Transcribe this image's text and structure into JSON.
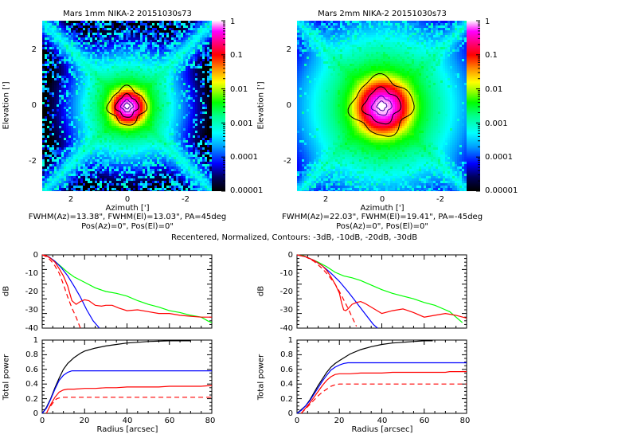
{
  "footer_note": "Recentered, Normalized, Contours: -3dB, -10dB, -20dB, -30dB",
  "chart_data": [
    {
      "type": "heatmap",
      "title": "Mars 1mm NIKA-2 20151030s73",
      "xlabel": "Azimuth [']",
      "ylabel": "Elevation [']",
      "xticks": [
        "2",
        "0",
        "-2"
      ],
      "yticks": [
        "2",
        "0",
        "-2"
      ],
      "xlim": [
        3,
        -3
      ],
      "ylim": [
        -3,
        3
      ],
      "colorbar": {
        "scale": "log",
        "range": [
          1e-05,
          1
        ],
        "ticks": [
          "1",
          "0.1",
          "0.01",
          "0.001",
          "0.0001",
          "0.00001"
        ]
      },
      "contours_db": [
        -3,
        -10,
        -20,
        -30
      ],
      "fwhm_line": "FWHM(Az)=13.38\", FWHM(El)=13.03\", PA=45deg",
      "pos_line": "Pos(Az)=0\", Pos(El)=0\"",
      "fwhm_az_arcsec": 13.38,
      "fwhm_el_arcsec": 13.03,
      "pa_deg": 45
    },
    {
      "type": "heatmap",
      "title": "Mars 2mm NIKA-2 20151030s73",
      "xlabel": "Azimuth [']",
      "ylabel": "Elevation [']",
      "xticks": [
        "2",
        "0",
        "-2"
      ],
      "yticks": [
        "2",
        "0",
        "-2"
      ],
      "xlim": [
        3,
        -3
      ],
      "ylim": [
        -3,
        3
      ],
      "colorbar": {
        "scale": "log",
        "range": [
          1e-05,
          1
        ],
        "ticks": [
          "1",
          "0.1",
          "0.01",
          "0.001",
          "0.0001",
          "0.00001"
        ]
      },
      "contours_db": [
        -3,
        -10,
        -20,
        -30
      ],
      "fwhm_line": "FWHM(Az)=22.03\", FWHM(El)=19.41\", PA=-45deg",
      "pos_line": "Pos(Az)=0\", Pos(El)=0\"",
      "fwhm_az_arcsec": 22.03,
      "fwhm_el_arcsec": 19.41,
      "pa_deg": -45
    },
    {
      "type": "line",
      "band": "1mm",
      "ylabel": "dB",
      "xlim": [
        0,
        80
      ],
      "ylim": [
        -40,
        0
      ],
      "yticks": [
        "0",
        "-10",
        "-20",
        "-30",
        "-40"
      ],
      "series": [
        {
          "name": "profile-green",
          "color": "#00ff00",
          "dash": false,
          "x": [
            0,
            3,
            6,
            9,
            12,
            15,
            20,
            25,
            30,
            35,
            40,
            45,
            50,
            55,
            60,
            65,
            70,
            75,
            78,
            80
          ],
          "y": [
            0,
            -1,
            -3.5,
            -6.5,
            -9.5,
            -12,
            -15,
            -18,
            -20,
            -21,
            -22.5,
            -25,
            -27,
            -28.5,
            -30.5,
            -31.5,
            -33,
            -34,
            -36,
            -37
          ]
        },
        {
          "name": "profile-blue",
          "color": "#0000ff",
          "dash": false,
          "x": [
            0,
            3,
            6,
            9,
            12,
            15,
            18,
            21,
            24,
            27
          ],
          "y": [
            0,
            -1,
            -3.5,
            -7,
            -11.5,
            -17,
            -23,
            -30,
            -36,
            -41
          ]
        },
        {
          "name": "profile-red",
          "color": "#ff0000",
          "dash": false,
          "x": [
            0,
            2,
            4,
            6,
            8,
            10,
            12,
            13,
            14,
            15,
            16,
            18,
            20,
            22,
            25,
            28,
            30,
            33,
            36,
            40,
            45,
            50,
            55,
            60,
            65,
            70,
            75,
            80
          ],
          "y": [
            0,
            -0.5,
            -2,
            -4,
            -7.5,
            -11.5,
            -17,
            -21,
            -25,
            -26,
            -27,
            -25.5,
            -24.5,
            -25,
            -27.5,
            -28,
            -27.5,
            -27.5,
            -29,
            -30.5,
            -30,
            -31,
            -32,
            -32,
            -33,
            -33.5,
            -34,
            -34
          ]
        },
        {
          "name": "profile-red-dashed",
          "color": "#ff0000",
          "dash": true,
          "x": [
            0,
            2,
            4,
            6,
            8,
            10,
            12,
            14,
            16,
            18
          ],
          "y": [
            0,
            -1,
            -3,
            -6,
            -10,
            -16,
            -23,
            -29,
            -34,
            -40
          ]
        }
      ]
    },
    {
      "type": "line",
      "band": "2mm",
      "ylabel": "dB",
      "xlim": [
        0,
        80
      ],
      "ylim": [
        -40,
        0
      ],
      "yticks": [
        "0",
        "-10",
        "-20",
        "-30",
        "-40"
      ],
      "series": [
        {
          "name": "profile-green",
          "color": "#00ff00",
          "dash": false,
          "x": [
            0,
            3,
            6,
            10,
            14,
            18,
            22,
            26,
            30,
            35,
            40,
            45,
            50,
            55,
            60,
            65,
            70,
            72,
            75,
            78
          ],
          "y": [
            0,
            -0.5,
            -2,
            -4,
            -6.5,
            -9.5,
            -11.5,
            -12.5,
            -14,
            -16.5,
            -19,
            -21,
            -22.5,
            -24,
            -26,
            -27.5,
            -30,
            -31,
            -34,
            -37
          ]
        },
        {
          "name": "profile-blue",
          "color": "#0000ff",
          "dash": false,
          "x": [
            0,
            4,
            8,
            12,
            16,
            20,
            24,
            28,
            32,
            36,
            38
          ],
          "y": [
            0,
            -1,
            -3,
            -6,
            -10,
            -14.5,
            -20,
            -26,
            -32,
            -38,
            -41
          ]
        },
        {
          "name": "profile-red",
          "color": "#ff0000",
          "dash": false,
          "x": [
            0,
            4,
            8,
            12,
            14,
            16,
            18,
            20,
            21,
            22,
            23,
            24,
            26,
            28,
            30,
            32,
            35,
            40,
            45,
            50,
            55,
            60,
            65,
            70,
            75,
            80
          ],
          "y": [
            0,
            -1,
            -3,
            -6,
            -8.5,
            -12,
            -16,
            -21,
            -26,
            -30,
            -30.5,
            -29.5,
            -27,
            -26,
            -25.5,
            -26.5,
            -28.5,
            -32,
            -30.5,
            -29.5,
            -31.5,
            -34,
            -33,
            -32,
            -33,
            -34.5
          ]
        },
        {
          "name": "profile-red-dashed",
          "color": "#ff0000",
          "dash": true,
          "x": [
            0,
            4,
            8,
            12,
            15,
            18,
            20,
            22,
            24,
            26,
            28
          ],
          "y": [
            0,
            -1,
            -3.5,
            -7.5,
            -11.5,
            -16,
            -20,
            -24.5,
            -29,
            -34,
            -39
          ]
        }
      ]
    },
    {
      "type": "line",
      "band": "1mm",
      "ylabel": "Total power",
      "xlabel": "Radius [arcsec]",
      "xlim": [
        0,
        80
      ],
      "ylim": [
        0,
        1
      ],
      "xticks": [
        "0",
        "20",
        "40",
        "60",
        "80"
      ],
      "yticks": [
        "0",
        "0.2",
        "0.4",
        "0.6",
        "0.8",
        "1"
      ],
      "series": [
        {
          "name": "power-black",
          "color": "#000000",
          "dash": false,
          "x": [
            0,
            2,
            4,
            6,
            8,
            10,
            12,
            15,
            18,
            20,
            25,
            30,
            35,
            40,
            45,
            50,
            60,
            70
          ],
          "y": [
            0,
            0.08,
            0.2,
            0.35,
            0.48,
            0.6,
            0.68,
            0.76,
            0.82,
            0.85,
            0.89,
            0.92,
            0.94,
            0.96,
            0.97,
            0.98,
            0.99,
            0.99
          ]
        },
        {
          "name": "power-blue",
          "color": "#0000ff",
          "dash": false,
          "x": [
            0,
            2,
            4,
            6,
            8,
            10,
            12,
            14,
            15,
            80
          ],
          "y": [
            0,
            0.07,
            0.19,
            0.33,
            0.45,
            0.52,
            0.56,
            0.58,
            0.58,
            0.58
          ]
        },
        {
          "name": "power-red",
          "color": "#ff0000",
          "dash": false,
          "x": [
            2,
            4,
            6,
            8,
            10,
            12,
            15,
            20,
            25,
            30,
            35,
            40,
            45,
            50,
            55,
            60,
            65,
            70,
            75,
            80
          ],
          "y": [
            0,
            0.12,
            0.22,
            0.29,
            0.32,
            0.33,
            0.33,
            0.34,
            0.34,
            0.35,
            0.35,
            0.36,
            0.36,
            0.36,
            0.36,
            0.37,
            0.37,
            0.37,
            0.37,
            0.38
          ]
        },
        {
          "name": "power-red-dashed",
          "color": "#ff0000",
          "dash": true,
          "x": [
            4,
            5,
            6,
            7,
            8,
            10,
            12,
            80
          ],
          "y": [
            0.1,
            0.14,
            0.18,
            0.2,
            0.21,
            0.22,
            0.22,
            0.22
          ]
        }
      ]
    },
    {
      "type": "line",
      "band": "2mm",
      "ylabel": "Total power",
      "xlabel": "Radius [arcsec]",
      "xlim": [
        0,
        80
      ],
      "ylim": [
        0,
        1
      ],
      "xticks": [
        "0",
        "20",
        "40",
        "60",
        "80"
      ],
      "yticks": [
        "0",
        "0.2",
        "0.4",
        "0.6",
        "0.8",
        "1"
      ],
      "series": [
        {
          "name": "power-black",
          "color": "#000000",
          "dash": false,
          "x": [
            0,
            2,
            4,
            6,
            8,
            10,
            12,
            14,
            16,
            18,
            20,
            25,
            30,
            35,
            40,
            45,
            50,
            55,
            60,
            64
          ],
          "y": [
            0,
            0.05,
            0.1,
            0.18,
            0.28,
            0.38,
            0.47,
            0.56,
            0.63,
            0.68,
            0.72,
            0.81,
            0.87,
            0.91,
            0.94,
            0.96,
            0.97,
            0.98,
            0.99,
            0.99
          ]
        },
        {
          "name": "power-blue",
          "color": "#0000ff",
          "dash": false,
          "x": [
            0,
            2,
            4,
            6,
            8,
            10,
            12,
            14,
            16,
            18,
            20,
            22,
            24,
            26,
            80
          ],
          "y": [
            0,
            0.04,
            0.1,
            0.17,
            0.26,
            0.35,
            0.44,
            0.52,
            0.59,
            0.63,
            0.66,
            0.68,
            0.69,
            0.69,
            0.69
          ]
        },
        {
          "name": "power-red",
          "color": "#ff0000",
          "dash": false,
          "x": [
            2,
            4,
            6,
            8,
            10,
            12,
            14,
            16,
            18,
            20,
            25,
            30,
            40,
            45,
            50,
            60,
            70,
            72,
            80
          ],
          "y": [
            0,
            0.07,
            0.14,
            0.22,
            0.3,
            0.38,
            0.45,
            0.5,
            0.53,
            0.54,
            0.54,
            0.55,
            0.55,
            0.56,
            0.56,
            0.56,
            0.56,
            0.57,
            0.57
          ]
        },
        {
          "name": "power-red-dashed",
          "color": "#ff0000",
          "dash": true,
          "x": [
            2,
            4,
            6,
            8,
            10,
            12,
            14,
            16,
            18,
            20,
            25,
            80
          ],
          "y": [
            0,
            0.06,
            0.12,
            0.18,
            0.24,
            0.29,
            0.33,
            0.37,
            0.39,
            0.4,
            0.4,
            0.4
          ]
        }
      ]
    }
  ]
}
